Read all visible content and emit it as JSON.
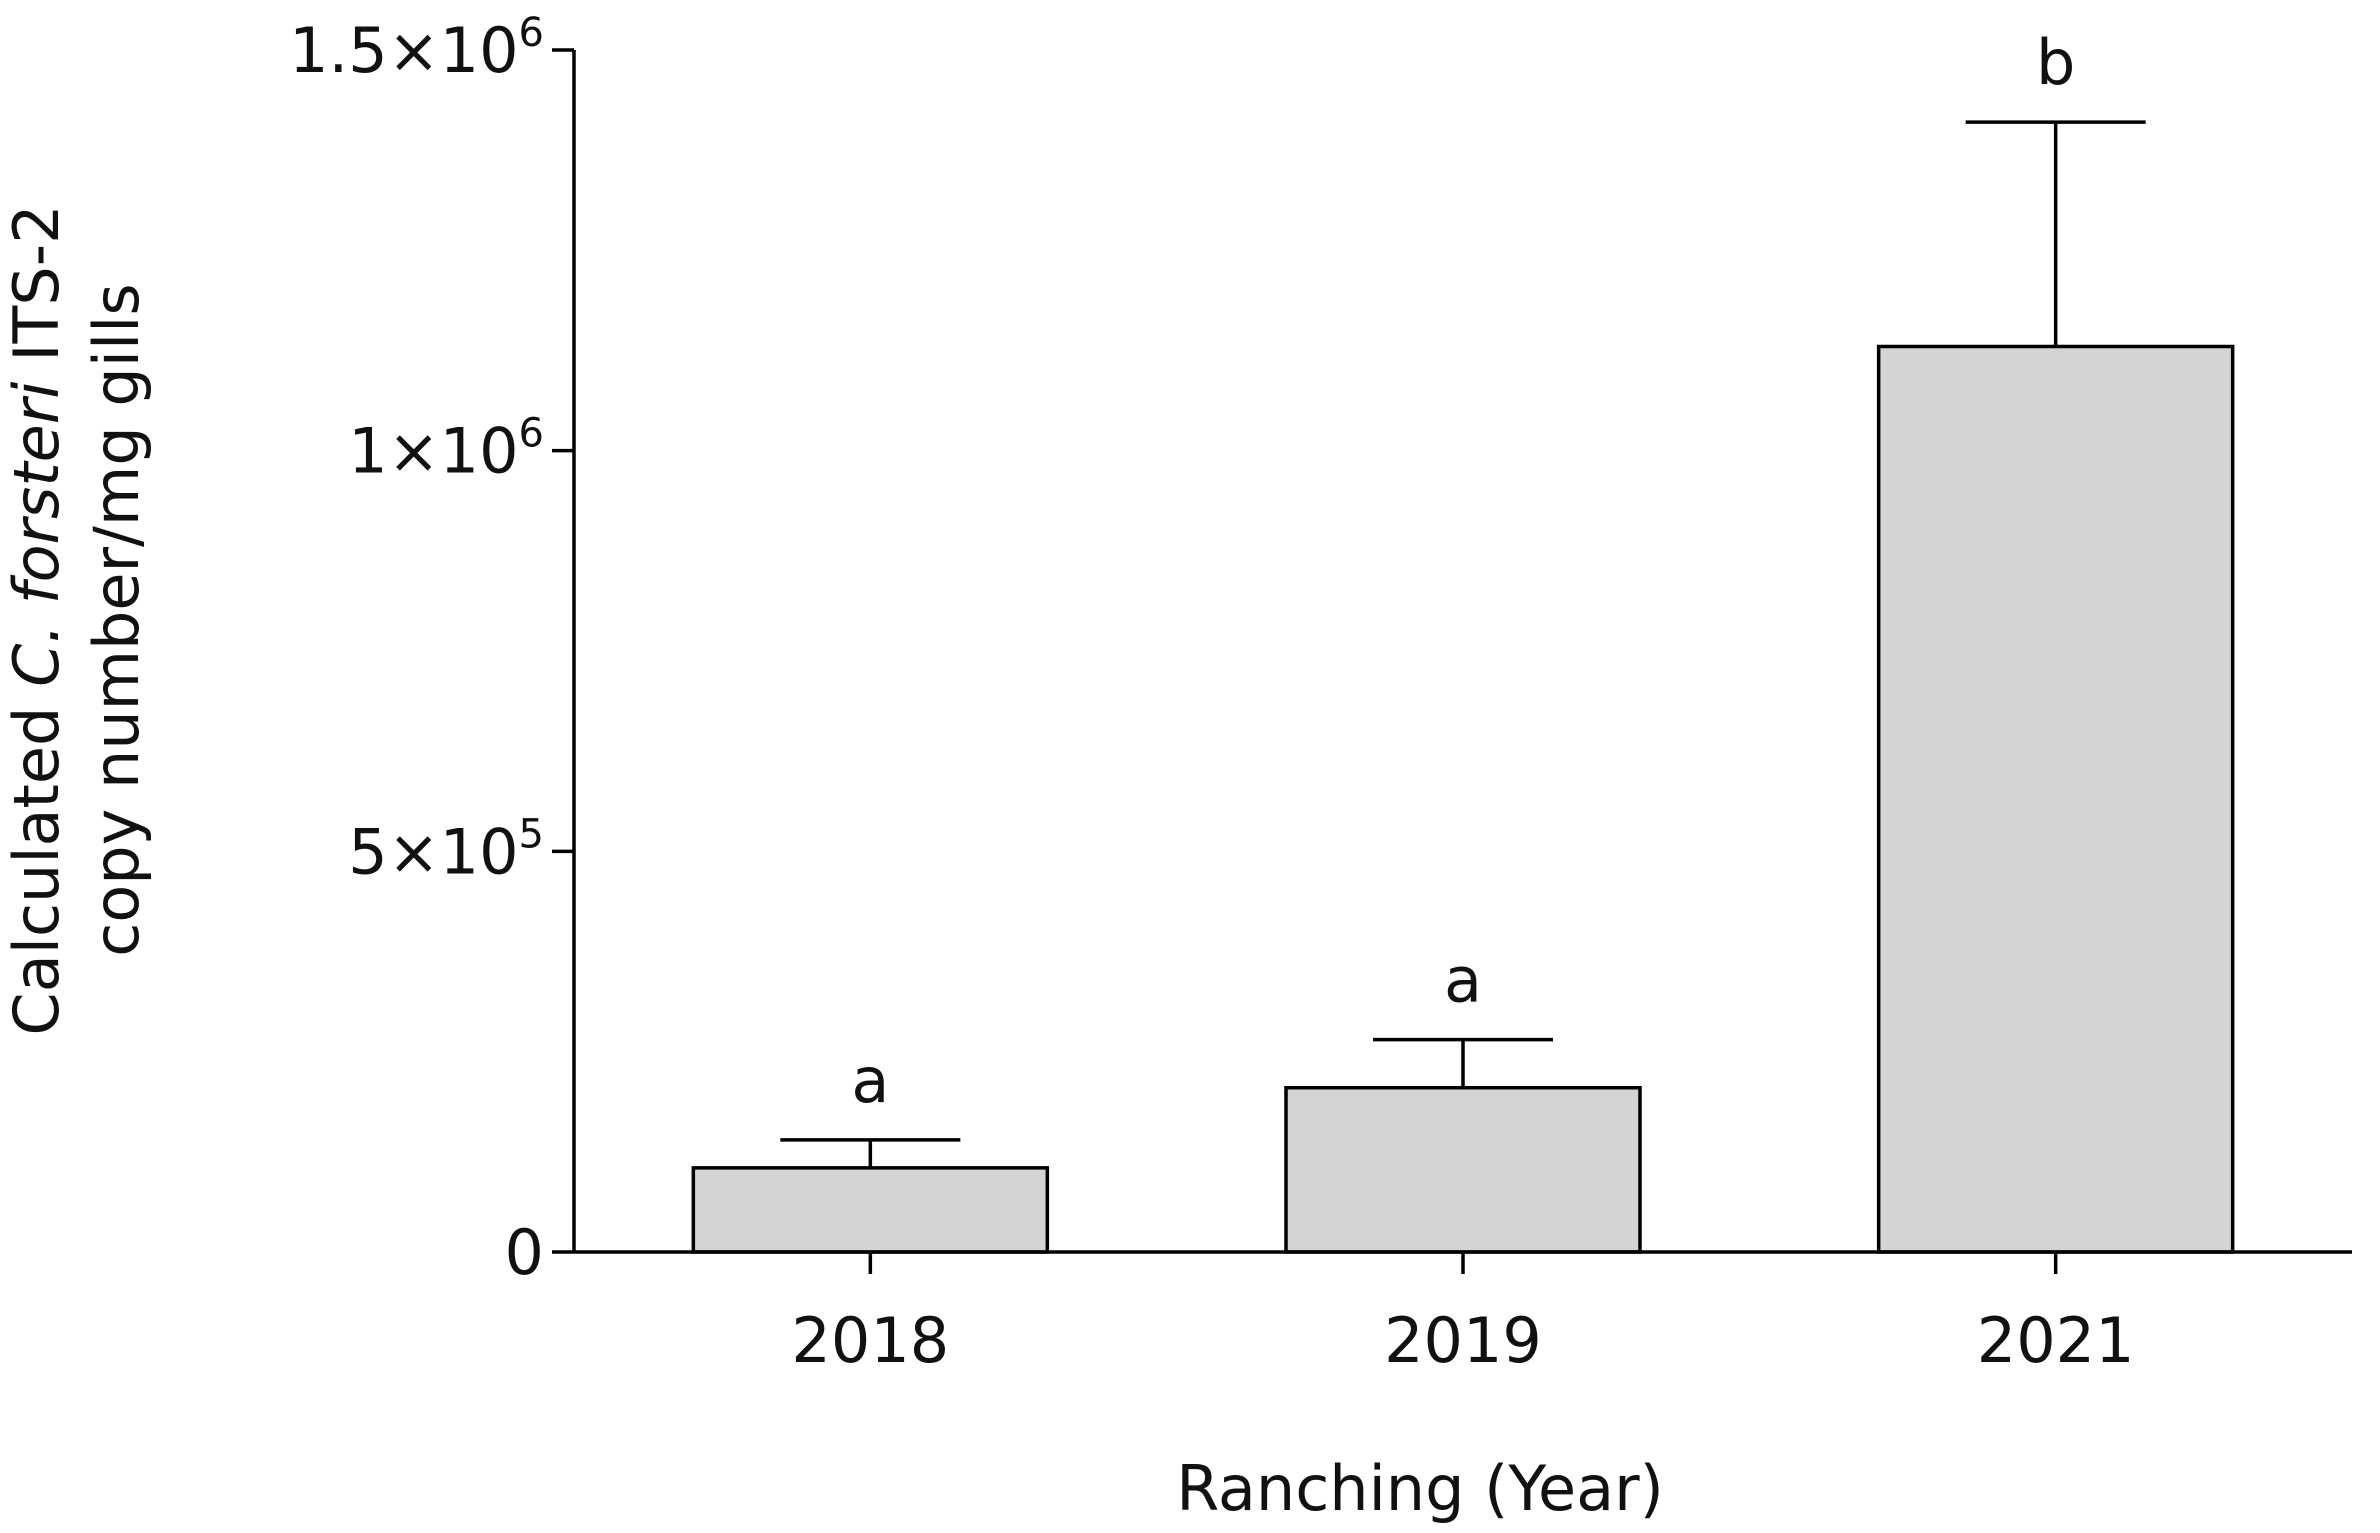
{
  "chart_data": {
    "type": "bar",
    "categories": [
      "2018",
      "2019",
      "2021"
    ],
    "series": [
      {
        "values": [
          105000,
          205000,
          1130000
        ],
        "error_upper": [
          140000,
          265000,
          1410000
        ],
        "significance": [
          "a",
          "a",
          "b"
        ]
      }
    ],
    "xlabel": "Ranching (Year)",
    "ylabel_line1_parts": [
      "Calculated ",
      "C. forsteri",
      " ITS-2"
    ],
    "ylabel_line2": "copy number/mg gills",
    "ylim": [
      0,
      1500000
    ],
    "yticks": [
      {
        "value": 0,
        "base": "0",
        "exp": ""
      },
      {
        "value": 500000,
        "base": "5×10",
        "exp": "5"
      },
      {
        "value": 1000000,
        "base": "1×10",
        "exp": "6"
      },
      {
        "value": 1500000,
        "base": "1.5×10",
        "exp": "6"
      }
    ],
    "grid": false,
    "legend": "none",
    "bar_fill": "#d4d4d4",
    "axis_color": "#000000"
  }
}
